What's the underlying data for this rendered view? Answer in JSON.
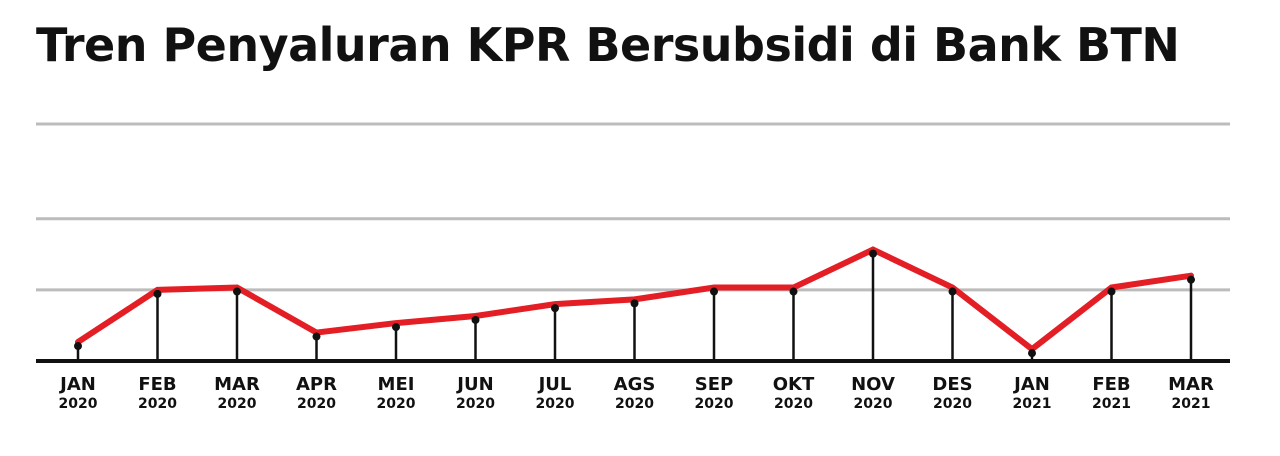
{
  "chart_data": {
    "type": "line",
    "title": "Tren Penyaluran KPR Bersubsidi di Bank BTN",
    "xlabel": "",
    "ylabel": "",
    "categories": [
      {
        "month": "JAN",
        "year": "2020"
      },
      {
        "month": "FEB",
        "year": "2020"
      },
      {
        "month": "MAR",
        "year": "2020"
      },
      {
        "month": "APR",
        "year": "2020"
      },
      {
        "month": "MEI",
        "year": "2020"
      },
      {
        "month": "JUN",
        "year": "2020"
      },
      {
        "month": "JUL",
        "year": "2020"
      },
      {
        "month": "AGS",
        "year": "2020"
      },
      {
        "month": "SEP",
        "year": "2020"
      },
      {
        "month": "OKT",
        "year": "2020"
      },
      {
        "month": "NOV",
        "year": "2020"
      },
      {
        "month": "DES",
        "year": "2020"
      },
      {
        "month": "JAN",
        "year": "2021"
      },
      {
        "month": "FEB",
        "year": "2021"
      },
      {
        "month": "MAR",
        "year": "2021"
      }
    ],
    "series": [
      {
        "values": [
          0.8,
          3.0,
          3.1,
          1.2,
          1.6,
          1.9,
          2.4,
          2.6,
          3.1,
          3.1,
          4.7,
          3.1,
          0.5,
          3.1,
          3.6
        ]
      }
    ],
    "ylim": [
      0,
      10
    ],
    "gridlines": [
      3,
      6,
      10
    ],
    "grid": true,
    "legend": "none",
    "y_tick_labels_visible": false,
    "line_color": "#e31e24",
    "marker_color": "#111111",
    "stem_color": "#111111",
    "grid_color": "#bcbcbc",
    "axis_color": "#111111"
  }
}
